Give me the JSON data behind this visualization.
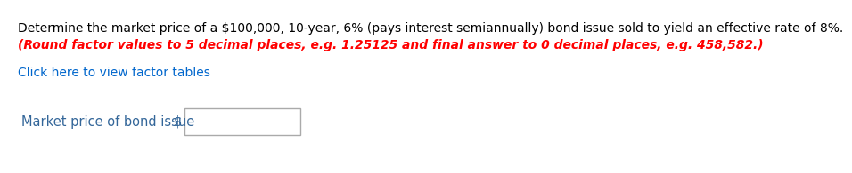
{
  "line1": "Determine the market price of a $100,000, 10-year, 6% (pays interest semiannually) bond issue sold to yield an effective rate of 8%.",
  "line2": "(Round factor values to 5 decimal places, e.g. 1.25125 and final answer to 0 decimal places, e.g. 458,582.)",
  "link_text": "Click here to view factor tables",
  "label_text": "Market price of bond issue",
  "dollar_sign": "$",
  "line1_color": "#000000",
  "line2_color": "#FF0000",
  "link_color": "#0066CC",
  "label_color": "#336699",
  "bg_color": "#FFFFFF",
  "font_size_line1": 10.0,
  "font_size_line2": 10.0,
  "font_size_link": 10.0,
  "font_size_label": 10.5,
  "box_edge_color": "#AAAAAA",
  "box_face_color": "#FFFFFF"
}
